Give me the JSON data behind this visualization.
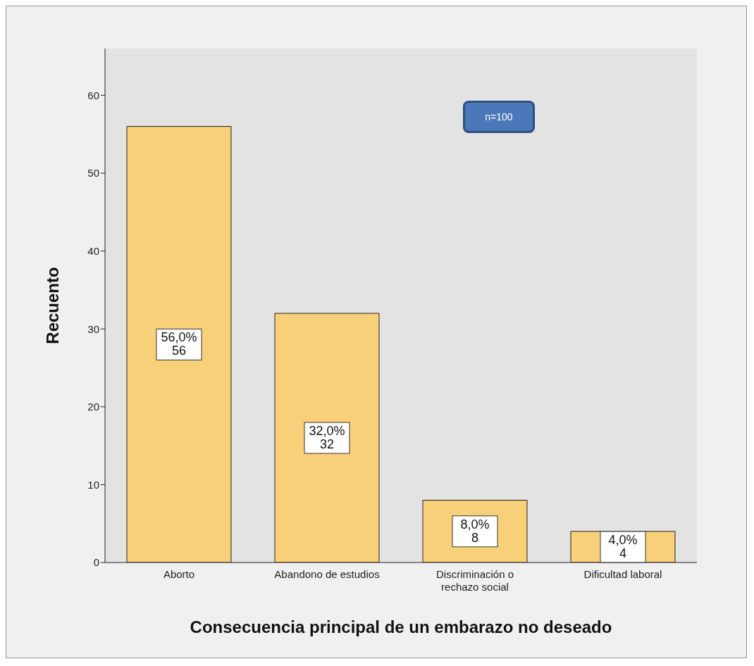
{
  "chart_data": {
    "type": "bar",
    "xlabel": "Consecuencia principal de un embarazo no deseado",
    "ylabel": "Recuento",
    "categories": [
      "Aborto",
      "Abandono de estudios",
      "Discriminación o rechazo social",
      "Dificultad laboral"
    ],
    "values": [
      56,
      32,
      8,
      4
    ],
    "color": "#f9d07a",
    "value_labels": [
      "56,0%\n56",
      "32,0%\n32",
      "8,0%\n8",
      "4,0%\n4"
    ],
    "ylim": [
      0,
      66
    ],
    "yticks": [
      0,
      10,
      20,
      30,
      40,
      50,
      60
    ],
    "grid": false,
    "annotations": [
      "n=100"
    ]
  }
}
